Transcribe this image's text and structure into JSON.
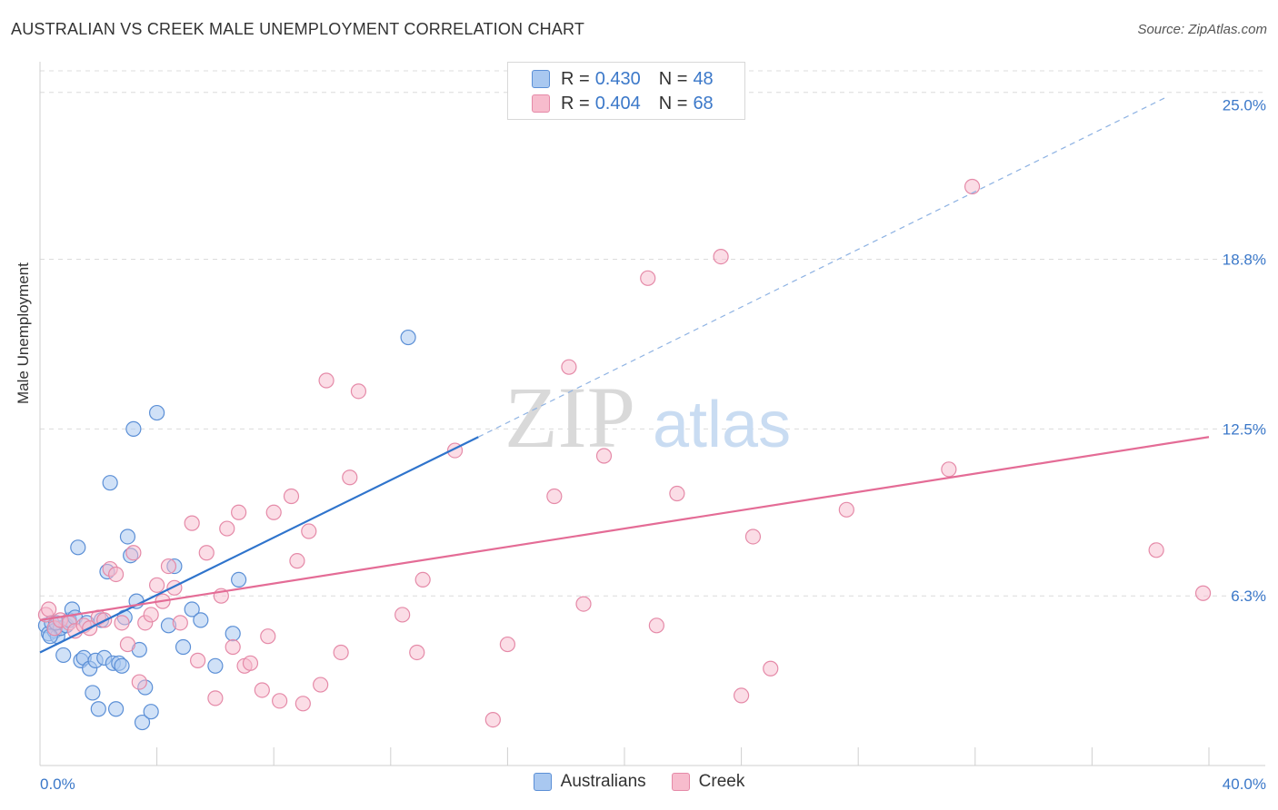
{
  "title": "AUSTRALIAN VS CREEK MALE UNEMPLOYMENT CORRELATION CHART",
  "source": "Source: ZipAtlas.com",
  "watermark": {
    "zip": "ZIP",
    "atlas": "atlas"
  },
  "legend": {
    "rows": [
      {
        "r_label": "R =",
        "r_value": "0.430",
        "n_label": "N =",
        "n_value": "48"
      },
      {
        "r_label": "R =",
        "r_value": "0.404",
        "n_label": "N =",
        "n_value": "68"
      }
    ]
  },
  "bottom_legend": [
    "Australians",
    "Creek"
  ],
  "colors": {
    "blue_fill": "#a9c8f0",
    "blue_stroke": "#5b8fd6",
    "blue_line": "#2f74cc",
    "pink_fill": "#f7bccd",
    "pink_stroke": "#e58aa8",
    "pink_line": "#e46c96",
    "tick_label": "#3b78c9",
    "grid": "#dcdcdc"
  },
  "chart_data": {
    "type": "scatter",
    "title": "AUSTRALIAN VS CREEK MALE UNEMPLOYMENT CORRELATION CHART",
    "xlabel": "",
    "ylabel": "Male Unemployment",
    "xlim": [
      0,
      40
    ],
    "ylim": [
      0,
      25.8
    ],
    "x_tick_labels": [
      {
        "value": 0,
        "label": "0.0%"
      },
      {
        "value": 40,
        "label": "40.0%"
      }
    ],
    "y_ticks": [
      {
        "value": 6.3,
        "label": "6.3%"
      },
      {
        "value": 12.5,
        "label": "12.5%"
      },
      {
        "value": 18.8,
        "label": "18.8%"
      },
      {
        "value": 25.0,
        "label": "25.0%"
      }
    ],
    "series": [
      {
        "name": "Australians",
        "r": 0.43,
        "n": 48,
        "trend": {
          "x0": 0.0,
          "y0": 4.2,
          "x1": 15.0,
          "y1": 12.2,
          "dash_to_x": 38.5,
          "dash_to_y": 24.8
        },
        "points": [
          [
            0.2,
            5.2
          ],
          [
            0.3,
            4.9
          ],
          [
            0.4,
            5.3
          ],
          [
            0.5,
            5.0
          ],
          [
            0.6,
            4.8
          ],
          [
            0.7,
            5.1
          ],
          [
            0.8,
            4.1
          ],
          [
            0.9,
            5.2
          ],
          [
            1.0,
            5.4
          ],
          [
            1.1,
            5.8
          ],
          [
            1.2,
            5.5
          ],
          [
            1.3,
            8.1
          ],
          [
            1.4,
            3.9
          ],
          [
            1.5,
            4.0
          ],
          [
            1.6,
            5.3
          ],
          [
            1.7,
            3.6
          ],
          [
            1.8,
            2.7
          ],
          [
            1.9,
            3.9
          ],
          [
            2.0,
            2.1
          ],
          [
            2.1,
            5.4
          ],
          [
            2.2,
            4.0
          ],
          [
            2.3,
            7.2
          ],
          [
            2.4,
            10.5
          ],
          [
            2.5,
            3.8
          ],
          [
            2.6,
            2.1
          ],
          [
            2.7,
            3.8
          ],
          [
            2.8,
            3.7
          ],
          [
            2.9,
            5.5
          ],
          [
            3.0,
            8.5
          ],
          [
            3.1,
            7.8
          ],
          [
            3.2,
            12.5
          ],
          [
            3.3,
            6.1
          ],
          [
            3.4,
            4.3
          ],
          [
            3.5,
            1.6
          ],
          [
            3.6,
            2.9
          ],
          [
            3.8,
            2.0
          ],
          [
            4.0,
            13.1
          ],
          [
            4.4,
            5.2
          ],
          [
            4.6,
            7.4
          ],
          [
            4.9,
            4.4
          ],
          [
            5.2,
            5.8
          ],
          [
            5.5,
            5.4
          ],
          [
            6.0,
            3.7
          ],
          [
            6.6,
            4.9
          ],
          [
            6.8,
            6.9
          ],
          [
            12.6,
            15.9
          ],
          [
            0.35,
            4.8
          ],
          [
            0.55,
            5.3
          ]
        ]
      },
      {
        "name": "Creek",
        "r": 0.404,
        "n": 68,
        "trend": {
          "x0": 0.0,
          "y0": 5.4,
          "x1": 40.0,
          "y1": 12.2
        },
        "points": [
          [
            0.2,
            5.6
          ],
          [
            0.5,
            5.1
          ],
          [
            0.7,
            5.4
          ],
          [
            1.0,
            5.3
          ],
          [
            1.2,
            5.0
          ],
          [
            1.5,
            5.2
          ],
          [
            1.7,
            5.1
          ],
          [
            2.0,
            5.5
          ],
          [
            2.2,
            5.4
          ],
          [
            2.4,
            7.3
          ],
          [
            2.6,
            7.1
          ],
          [
            2.8,
            5.3
          ],
          [
            3.0,
            4.5
          ],
          [
            3.2,
            7.9
          ],
          [
            3.4,
            3.1
          ],
          [
            3.6,
            5.3
          ],
          [
            3.8,
            5.6
          ],
          [
            4.0,
            6.7
          ],
          [
            4.2,
            6.1
          ],
          [
            4.4,
            7.4
          ],
          [
            4.6,
            6.6
          ],
          [
            4.8,
            5.3
          ],
          [
            5.2,
            9.0
          ],
          [
            5.4,
            3.9
          ],
          [
            5.7,
            7.9
          ],
          [
            6.0,
            2.5
          ],
          [
            6.2,
            6.3
          ],
          [
            6.4,
            8.8
          ],
          [
            6.6,
            4.4
          ],
          [
            6.8,
            9.4
          ],
          [
            7.0,
            3.7
          ],
          [
            7.2,
            3.8
          ],
          [
            7.6,
            2.8
          ],
          [
            7.8,
            4.8
          ],
          [
            8.0,
            9.4
          ],
          [
            8.2,
            2.4
          ],
          [
            8.6,
            10.0
          ],
          [
            8.8,
            7.6
          ],
          [
            9.0,
            2.3
          ],
          [
            9.2,
            8.7
          ],
          [
            9.6,
            3.0
          ],
          [
            9.8,
            14.3
          ],
          [
            10.3,
            4.2
          ],
          [
            10.6,
            10.7
          ],
          [
            10.9,
            13.9
          ],
          [
            12.4,
            5.6
          ],
          [
            12.9,
            4.2
          ],
          [
            13.1,
            6.9
          ],
          [
            14.2,
            11.7
          ],
          [
            15.5,
            1.7
          ],
          [
            16.0,
            4.5
          ],
          [
            17.6,
            10.0
          ],
          [
            18.1,
            14.8
          ],
          [
            18.6,
            6.0
          ],
          [
            19.3,
            11.5
          ],
          [
            20.8,
            18.1
          ],
          [
            21.1,
            5.2
          ],
          [
            21.8,
            10.1
          ],
          [
            23.3,
            18.9
          ],
          [
            24.0,
            2.6
          ],
          [
            24.4,
            8.5
          ],
          [
            25.0,
            3.6
          ],
          [
            27.6,
            9.5
          ],
          [
            31.1,
            11.0
          ],
          [
            31.9,
            21.5
          ],
          [
            38.2,
            8.0
          ],
          [
            39.8,
            6.4
          ],
          [
            0.3,
            5.8
          ]
        ]
      }
    ]
  }
}
